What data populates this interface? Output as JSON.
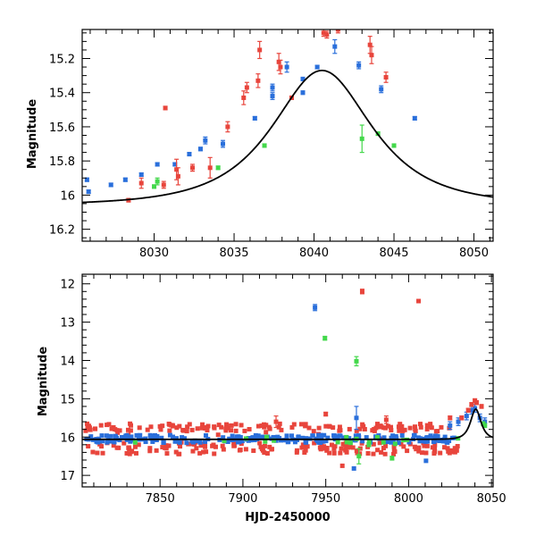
{
  "chart_data": [
    {
      "type": "scatter",
      "title": "",
      "xlabel": "",
      "ylabel": "Magnitude",
      "xlim": [
        8025.5,
        8051.2
      ],
      "ylim": [
        16.27,
        15.03
      ],
      "y_inverted": true,
      "grid": false,
      "xticks": [
        8030,
        8035,
        8040,
        8045,
        8050
      ],
      "yticks": [
        15.2,
        15.4,
        15.6,
        15.8,
        16,
        16.2
      ],
      "colors": {
        "blue": "#2a6fdb",
        "red": "#e8453c",
        "green": "#43d84b",
        "model": "#000000"
      },
      "model_curve": {
        "peak_time": 8040.5,
        "peak_mag": 15.27,
        "baseline_mag": 16.06,
        "tE": 4.5
      },
      "series": [
        {
          "color": "blue",
          "points": [
            [
              8025.8,
              15.91,
              0.01
            ],
            [
              8025.9,
              15.98,
              0.01
            ],
            [
              8027.3,
              15.94,
              0.01
            ],
            [
              8028.2,
              15.91,
              0.01
            ],
            [
              8029.2,
              15.88,
              0.01
            ],
            [
              8030.2,
              15.82,
              0.01
            ],
            [
              8031.3,
              15.82,
              0.01
            ],
            [
              8032.2,
              15.76,
              0.01
            ],
            [
              8032.9,
              15.73,
              0.01
            ],
            [
              8033.2,
              15.68,
              0.02
            ],
            [
              8034.3,
              15.7,
              0.02
            ],
            [
              8036.3,
              15.55,
              0.01
            ],
            [
              8037.4,
              15.37,
              0.02
            ],
            [
              8037.4,
              15.42,
              0.02
            ],
            [
              8038.3,
              15.25,
              0.03
            ],
            [
              8039.3,
              15.32,
              0.01
            ],
            [
              8039.3,
              15.4,
              0.01
            ],
            [
              8040.2,
              15.25,
              0.01
            ],
            [
              8041.3,
              15.13,
              0.04
            ],
            [
              8042.8,
              15.24,
              0.02
            ],
            [
              8044.2,
              15.38,
              0.02
            ],
            [
              8046.3,
              15.55,
              0.01
            ]
          ]
        },
        {
          "color": "red",
          "points": [
            [
              8028.4,
              16.03,
              0.01
            ],
            [
              8029.2,
              15.93,
              0.03
            ],
            [
              8030.6,
              15.94,
              0.02
            ],
            [
              8030.7,
              15.49,
              0.01
            ],
            [
              8031.4,
              15.85,
              0.06
            ],
            [
              8031.5,
              15.89,
              0.05
            ],
            [
              8032.4,
              15.84,
              0.02
            ],
            [
              8033.5,
              15.84,
              0.06
            ],
            [
              8034.6,
              15.6,
              0.03
            ],
            [
              8035.6,
              15.43,
              0.04
            ],
            [
              8035.8,
              15.37,
              0.03
            ],
            [
              8036.5,
              15.33,
              0.04
            ],
            [
              8036.6,
              15.15,
              0.05
            ],
            [
              8037.8,
              15.22,
              0.05
            ],
            [
              8037.9,
              15.25,
              0.04
            ],
            [
              8038.6,
              15.43,
              0.01
            ],
            [
              8040.6,
              15.05,
              0.02
            ],
            [
              8040.8,
              15.06,
              0.02
            ],
            [
              8041.5,
              15.03,
              0.02
            ],
            [
              8043.5,
              15.12,
              0.05
            ],
            [
              8043.6,
              15.18,
              0.05
            ],
            [
              8044.5,
              15.31,
              0.03
            ]
          ]
        },
        {
          "color": "green",
          "points": [
            [
              8030.0,
              15.95,
              0.01
            ],
            [
              8030.2,
              15.92,
              0.02
            ],
            [
              8034.0,
              15.84,
              0.01
            ],
            [
              8036.9,
              15.71,
              0.01
            ],
            [
              8043.0,
              15.67,
              0.08
            ],
            [
              8044.0,
              15.64,
              0.01
            ],
            [
              8045.0,
              15.71,
              0.01
            ]
          ]
        }
      ]
    },
    {
      "type": "scatter",
      "title": "",
      "xlabel": "HJD-2450000",
      "ylabel": "Magnitude",
      "xlim": [
        7803,
        8051
      ],
      "ylim": [
        17.3,
        11.75
      ],
      "y_inverted": true,
      "grid": false,
      "xticks": [
        7850,
        7900,
        7950,
        8000,
        8050
      ],
      "yticks": [
        12,
        13,
        14,
        15,
        16,
        17
      ],
      "colors": {
        "blue": "#2a6fdb",
        "red": "#e8453c",
        "green": "#43d84b",
        "model": "#000000"
      },
      "model_curve": {
        "peak_time": 8040.5,
        "peak_mag": 15.27,
        "baseline_mag": 16.06,
        "tE": 4.5
      },
      "baseline_cloud": {
        "x_start": 7805,
        "x_end": 8030,
        "blue": {
          "count": 230,
          "mean": 16.05,
          "spread": 0.1
        },
        "red": {
          "count": 300,
          "mean": 16.05,
          "spread": 0.8
        },
        "green": {
          "count": 18,
          "mean": 16.1,
          "spread": 0.1
        }
      },
      "series": [
        {
          "color": "blue",
          "points": [
            [
              7943.5,
              12.62,
              0.08
            ],
            [
              7968.5,
              15.5,
              0.3
            ],
            [
              7967.0,
              16.82,
              0.02
            ],
            [
              8010.5,
              16.62,
              0.02
            ],
            [
              8025.0,
              15.7,
              0.1
            ],
            [
              8030.0,
              15.6,
              0.1
            ],
            [
              8035.0,
              15.45,
              0.1
            ],
            [
              8038.0,
              15.3,
              0.1
            ],
            [
              8040.0,
              15.25,
              0.1
            ],
            [
              8043.0,
              15.5,
              0.1
            ],
            [
              8046.0,
              15.6,
              0.1
            ]
          ]
        },
        {
          "color": "red",
          "points": [
            [
              7972.0,
              12.2,
              0.06
            ],
            [
              8006.0,
              12.45,
              0.03
            ],
            [
              7920.0,
              15.6,
              0.15
            ],
            [
              7950.0,
              15.4,
              0.05
            ],
            [
              7955.0,
              16.3,
              0.05
            ],
            [
              7960.0,
              16.75,
              0.03
            ],
            [
              7986.5,
              15.55,
              0.1
            ],
            [
              8025.0,
              15.5,
              0.05
            ],
            [
              8032.0,
              15.5,
              0.05
            ],
            [
              8036.0,
              15.3,
              0.05
            ],
            [
              8038.0,
              15.15,
              0.05
            ],
            [
              8040.0,
              15.05,
              0.05
            ],
            [
              8041.0,
              15.1,
              0.05
            ],
            [
              8044.0,
              15.2,
              0.05
            ]
          ]
        },
        {
          "color": "green",
          "points": [
            [
              7949.5,
              13.42,
              0.05
            ],
            [
              7968.5,
              14.02,
              0.12
            ],
            [
              7970.0,
              16.5,
              0.2
            ],
            [
              7976.0,
              16.2,
              0.05
            ],
            [
              7990.0,
              16.55,
              0.05
            ],
            [
              8045.0,
              15.65,
              0.05
            ],
            [
              8046.0,
              15.7,
              0.05
            ]
          ]
        }
      ]
    }
  ]
}
